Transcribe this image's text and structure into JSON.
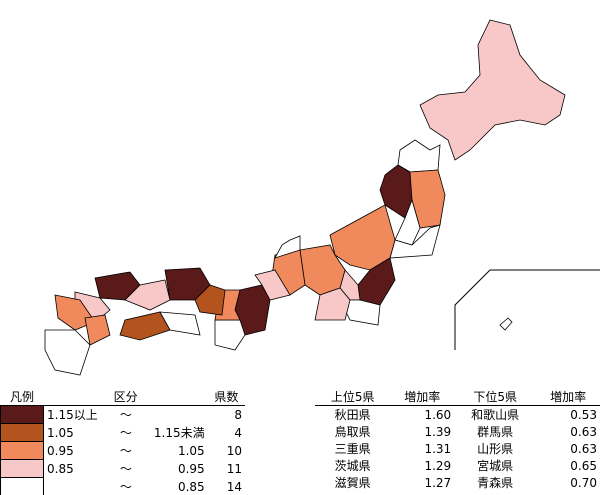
{
  "legend": {
    "headers": [
      "凡例",
      "区分",
      "県数"
    ],
    "rows": [
      {
        "color": "#5a1a1a",
        "from": "1.15以上",
        "sep": "～",
        "to": null,
        "count": 8
      },
      {
        "color": "#b3541e",
        "from": "1.05",
        "sep": "～",
        "to": "1.15未満",
        "count": 4
      },
      {
        "color": "#f08a5c",
        "from": "0.95",
        "sep": "～",
        "to": "1.05",
        "count": 10
      },
      {
        "color": "#f8c8c8",
        "from": "0.85",
        "sep": "～",
        "to": "0.95",
        "count": 11
      },
      {
        "color": "#ffffff",
        "from": null,
        "sep": "～",
        "to": "0.85",
        "count": 14
      }
    ]
  },
  "ranking": {
    "headers": [
      "上位5県",
      "増加率",
      "下位5県",
      "増加率"
    ],
    "rows": [
      [
        "秋田県",
        "1.60",
        "和歌山県",
        "0.53"
      ],
      [
        "鳥取県",
        "1.39",
        "群馬県",
        "0.63"
      ],
      [
        "三重県",
        "1.31",
        "山形県",
        "0.63"
      ],
      [
        "茨城県",
        "1.29",
        "宮城県",
        "0.65"
      ],
      [
        "滋賀県",
        "1.27",
        "青森県",
        "0.70"
      ]
    ]
  }
}
